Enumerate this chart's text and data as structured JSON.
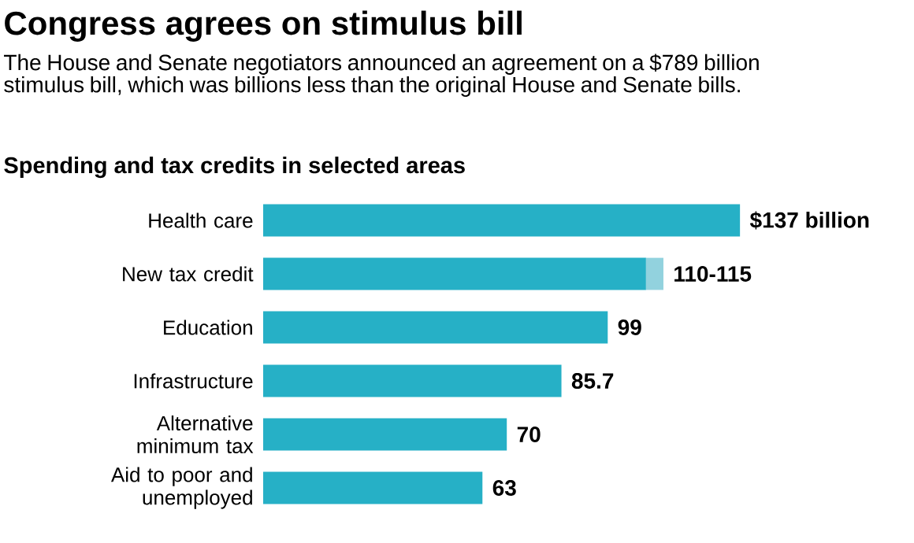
{
  "chart_data": {
    "type": "bar",
    "orientation": "horizontal",
    "stacked": true,
    "title": "Congress agrees on stimulus bill",
    "subtitle": "The House and Senate negotiators announced an agreement on a $789 billion stimulus bill, which was billions less than the original House and Senate bills.",
    "annotations": [
      "Spending and tax credits in selected areas"
    ],
    "categories": [
      "Health care",
      "New tax credit",
      "Education",
      "Infrastructure",
      "Alternative minimum tax",
      "Aid to poor and unemployed"
    ],
    "series": [
      {
        "color": "#26b0c6",
        "values": [
          137,
          110,
          99,
          85.7,
          70,
          63
        ],
        "value_labels": [
          "$137 billion",
          "110-115",
          "99",
          "85.7",
          "70",
          "63"
        ]
      },
      {
        "color": "#92d2de",
        "values": [
          null,
          5,
          null,
          null,
          null,
          null
        ]
      }
    ]
  }
}
